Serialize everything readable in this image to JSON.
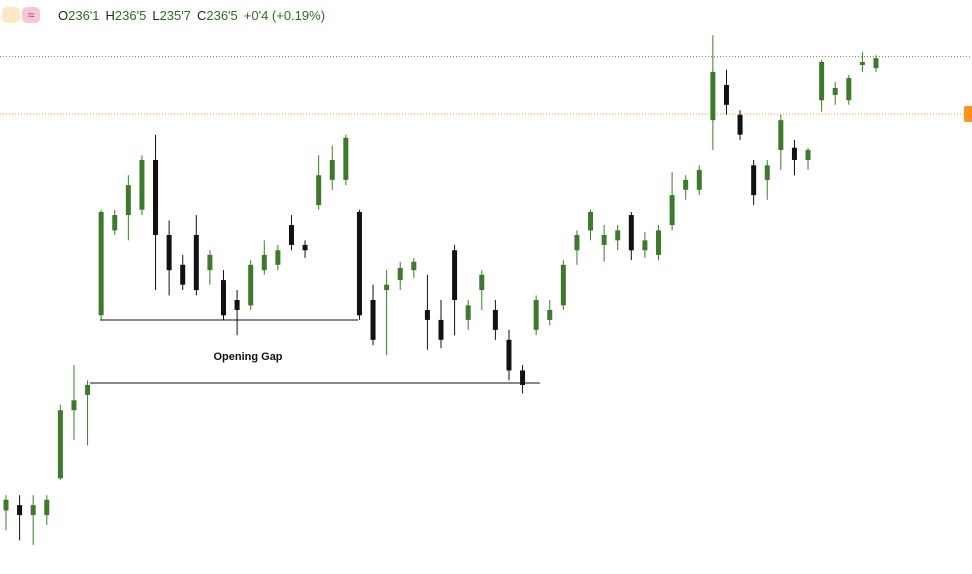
{
  "header": {
    "open_label": "O",
    "open": "236'1",
    "high_label": "H",
    "high": "236'5",
    "low_label": "L",
    "low": "235'7",
    "close_label": "C",
    "close": "236'5",
    "change": "+0'4 (+0.19%)"
  },
  "chart_data": {
    "type": "candlestick",
    "annotation": "Opening Gap",
    "up_color": "#3d7a2c",
    "down_color": "#111111",
    "ylim": [
      230,
      237.5
    ],
    "reference_lines": [
      {
        "value": 236.76,
        "color": "#777777"
      },
      {
        "value": 236.01,
        "color": "#f7931e"
      }
    ],
    "categories": [
      null,
      null,
      null,
      null,
      null,
      null,
      null,
      null,
      null,
      null,
      null,
      null,
      null,
      null,
      null,
      null,
      null,
      null,
      null,
      null,
      null,
      null,
      null,
      null,
      null,
      null,
      null,
      null,
      null,
      null,
      null,
      null,
      null,
      null,
      null,
      null,
      null,
      null,
      null,
      null,
      null,
      null,
      null,
      null,
      null,
      null,
      null,
      null,
      null,
      null,
      null,
      null,
      null,
      null,
      null,
      null,
      null,
      null,
      null,
      null,
      null,
      null,
      null,
      null,
      null
    ],
    "open": [
      230.83,
      230.9,
      230.77,
      230.77,
      231.25,
      232.14,
      232.34,
      233.38,
      234.49,
      234.69,
      234.76,
      235.41,
      234.43,
      234.04,
      234.43,
      233.97,
      233.84,
      233.58,
      233.51,
      233.97,
      234.04,
      234.56,
      234.3,
      234.82,
      235.15,
      235.15,
      234.73,
      233.58,
      233.71,
      233.84,
      233.97,
      233.45,
      233.32,
      234.23,
      233.32,
      233.71,
      233.45,
      233.06,
      232.66,
      233.19,
      233.32,
      233.51,
      234.23,
      234.49,
      234.3,
      234.36,
      234.69,
      234.23,
      234.17,
      234.56,
      235.02,
      235.02,
      235.93,
      236.39,
      236.0,
      235.34,
      235.15,
      235.54,
      235.57,
      235.41,
      236.19,
      236.26,
      236.19,
      236.65,
      236.61
    ],
    "high": [
      231.03,
      231.03,
      231.03,
      231.03,
      232.21,
      232.73,
      232.53,
      234.76,
      234.76,
      235.21,
      235.47,
      235.74,
      234.62,
      234.17,
      234.69,
      234.23,
      233.97,
      233.71,
      234.1,
      234.36,
      234.3,
      234.69,
      234.36,
      235.47,
      235.6,
      235.74,
      234.76,
      233.78,
      233.97,
      234.08,
      234.13,
      233.91,
      233.58,
      234.3,
      233.58,
      233.97,
      233.58,
      233.19,
      232.73,
      233.64,
      233.58,
      234.1,
      234.49,
      234.76,
      234.56,
      234.56,
      234.73,
      234.47,
      234.56,
      235.25,
      235.21,
      235.34,
      237.04,
      236.59,
      236.06,
      235.41,
      235.41,
      236.0,
      235.67,
      235.57,
      236.72,
      236.43,
      236.52,
      236.82,
      236.78
    ],
    "low": [
      230.57,
      230.44,
      230.38,
      230.64,
      231.23,
      231.75,
      231.68,
      233.32,
      234.43,
      234.36,
      234.69,
      233.71,
      233.64,
      233.71,
      233.64,
      233.78,
      233.32,
      233.12,
      233.45,
      233.91,
      233.97,
      234.23,
      234.13,
      234.76,
      235.02,
      235.08,
      233.32,
      232.99,
      232.86,
      233.71,
      233.87,
      232.93,
      232.95,
      233.12,
      233.19,
      233.45,
      233.06,
      232.53,
      232.36,
      233.12,
      233.25,
      233.45,
      234.04,
      234.36,
      234.08,
      234.23,
      234.1,
      234.13,
      234.1,
      234.49,
      234.89,
      234.95,
      235.54,
      236.0,
      235.67,
      234.82,
      234.89,
      235.28,
      235.21,
      235.28,
      236.04,
      236.13,
      236.13,
      236.56,
      236.56
    ],
    "close": [
      230.97,
      230.77,
      230.9,
      230.97,
      232.14,
      232.27,
      232.47,
      234.73,
      234.69,
      235.08,
      235.41,
      234.43,
      233.97,
      233.78,
      233.71,
      234.17,
      233.38,
      233.45,
      234.04,
      234.17,
      234.23,
      234.3,
      234.23,
      235.21,
      235.41,
      235.7,
      233.38,
      233.06,
      233.78,
      234.0,
      234.08,
      233.32,
      233.06,
      233.58,
      233.51,
      233.91,
      233.19,
      232.66,
      232.47,
      233.58,
      233.45,
      234.04,
      234.43,
      234.73,
      234.43,
      234.49,
      234.23,
      234.36,
      234.49,
      234.95,
      235.15,
      235.28,
      236.56,
      236.13,
      235.74,
      234.95,
      235.34,
      235.93,
      235.41,
      235.54,
      236.69,
      236.35,
      236.48,
      236.69,
      236.74
    ]
  }
}
